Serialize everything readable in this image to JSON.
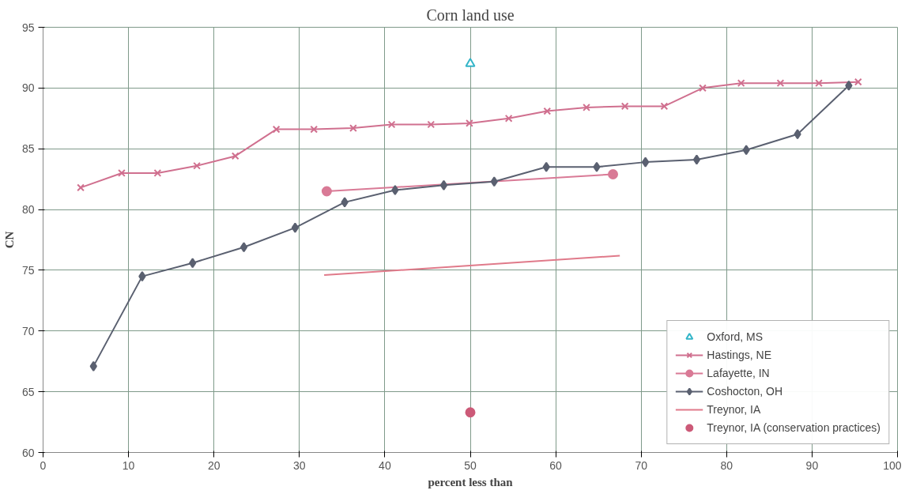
{
  "chart_data": {
    "type": "line",
    "title": "Corn land use",
    "xlabel": "percent less than",
    "ylabel": "CN",
    "xlim": [
      0,
      100
    ],
    "ylim": [
      60,
      95
    ],
    "xticks": [
      0,
      10,
      20,
      30,
      40,
      50,
      60,
      70,
      80,
      90,
      100
    ],
    "yticks": [
      60,
      65,
      70,
      75,
      80,
      85,
      90,
      95
    ],
    "grid": true,
    "legend": "bottom right",
    "series": [
      {
        "name": "Oxford, MS",
        "type": "scatter",
        "marker": "triangle",
        "color": "#33b5c8",
        "x": [
          50.0
        ],
        "values": [
          92.0
        ]
      },
      {
        "name": "Hastings, NE",
        "marker": "cross",
        "color": "#d0708f",
        "x": [
          4.4,
          9.2,
          13.4,
          18.0,
          22.5,
          27.3,
          31.7,
          36.3,
          40.8,
          45.4,
          49.9,
          54.5,
          59.0,
          63.6,
          68.1,
          72.7,
          77.2,
          81.7,
          86.3,
          90.8,
          95.4
        ],
        "values": [
          81.8,
          83.0,
          83.0,
          83.6,
          84.4,
          86.6,
          86.6,
          86.7,
          87.0,
          87.0,
          87.1,
          87.5,
          88.1,
          88.4,
          88.5,
          88.5,
          90.0,
          90.4,
          90.4,
          90.4,
          90.5
        ]
      },
      {
        "name": "Lafayette, IN",
        "marker": "circle",
        "color": "#d97a96",
        "x": [
          33.2,
          66.7
        ],
        "values": [
          81.5,
          82.9
        ]
      },
      {
        "name": "Coshocton, OH",
        "marker": "diamond",
        "color": "#5a6070",
        "x": [
          5.9,
          11.6,
          17.5,
          23.5,
          29.5,
          35.3,
          41.2,
          46.9,
          52.8,
          58.9,
          64.8,
          70.5,
          76.5,
          82.3,
          88.3,
          94.3
        ],
        "values": [
          67.1,
          74.5,
          75.6,
          76.9,
          78.5,
          80.6,
          81.6,
          82.0,
          82.3,
          83.5,
          83.5,
          83.9,
          84.1,
          84.9,
          86.2,
          90.2
        ]
      },
      {
        "name": "Treynor, IA",
        "marker": "none",
        "color": "#e07a8a",
        "x": [
          32.9,
          67.5
        ],
        "values": [
          74.6,
          76.2
        ]
      },
      {
        "name": "Treynor, IA (conservation practices)",
        "type": "scatter",
        "marker": "circle",
        "color": "#cc5a78",
        "x": [
          50.0
        ],
        "values": [
          63.3
        ]
      }
    ]
  }
}
